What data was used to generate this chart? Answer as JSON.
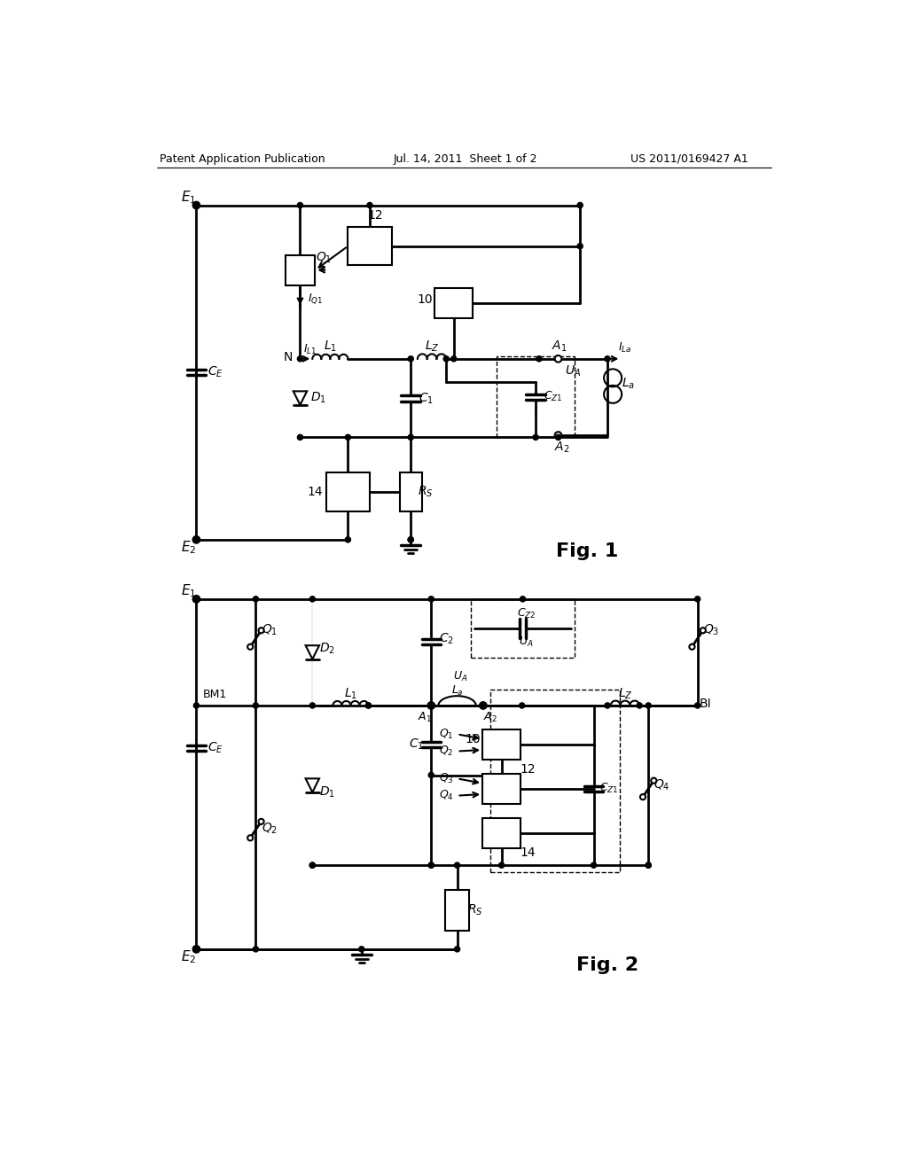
{
  "bg_color": "#ffffff",
  "line_color": "#000000",
  "header_left": "Patent Application Publication",
  "header_center": "Jul. 14, 2011  Sheet 1 of 2",
  "header_right": "US 2011/0169427 A1",
  "fig1_label": "Fig. 1",
  "fig2_label": "Fig. 2"
}
